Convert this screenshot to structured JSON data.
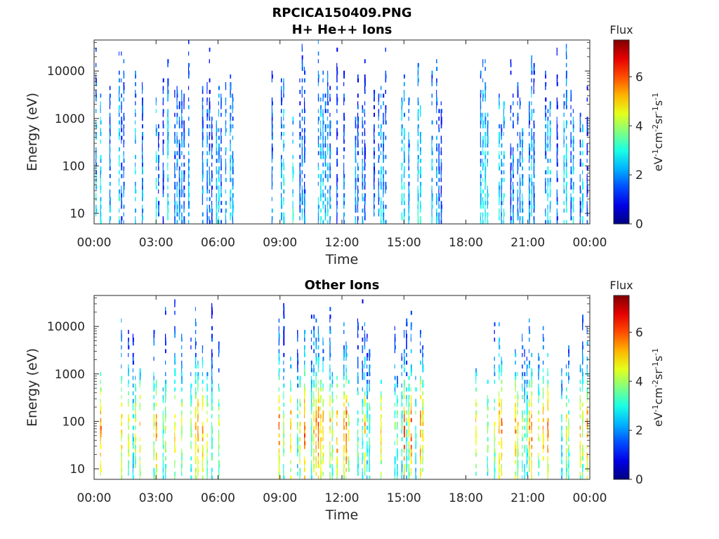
{
  "figure_title": "RPCICA150409.PNG",
  "chart_data": [
    {
      "type": "heatmap",
      "title": "H+ He++ Ions",
      "xlabel": "Time",
      "ylabel": "Energy (eV)",
      "x_ticks": [
        "00:00",
        "03:00",
        "06:00",
        "09:00",
        "12:00",
        "15:00",
        "18:00",
        "21:00",
        "00:00"
      ],
      "y_ticks": [
        "10",
        "100",
        "1000",
        "10000"
      ],
      "y_scale": "log",
      "ylim": [
        6,
        45000
      ],
      "x_range_hours": [
        0,
        24
      ],
      "colorbar": {
        "title": "Flux",
        "label": "eV-1cm-2sr-1s-1",
        "ticks": [
          "0",
          "2",
          "4",
          "6"
        ],
        "range": [
          0,
          7.5
        ],
        "colormap": "jet"
      },
      "data_gaps_hours": [
        [
          6.9,
          8.5
        ],
        [
          16.9,
          18.4
        ]
      ],
      "flux_profile": {
        "energy_eV": [
          10,
          30,
          100,
          300,
          1000,
          3000,
          10000
        ],
        "typical_flux": [
          2.6,
          2.4,
          2.3,
          2.2,
          2.1,
          1.8,
          1.6
        ]
      }
    },
    {
      "type": "heatmap",
      "title": "Other Ions",
      "xlabel": "Time",
      "ylabel": "Energy (eV)",
      "x_ticks": [
        "00:00",
        "03:00",
        "06:00",
        "09:00",
        "12:00",
        "15:00",
        "18:00",
        "21:00",
        "00:00"
      ],
      "y_ticks": [
        "10",
        "100",
        "1000",
        "10000"
      ],
      "y_scale": "log",
      "ylim": [
        6,
        45000
      ],
      "x_range_hours": [
        0,
        24
      ],
      "colorbar": {
        "title": "Flux",
        "label": "eV-1cm-2sr-1s-1",
        "ticks": [
          "0",
          "2",
          "4",
          "6"
        ],
        "range": [
          0,
          7.5
        ],
        "colormap": "jet"
      },
      "data_gaps_hours": [
        [
          6.9,
          8.5
        ],
        [
          16.9,
          18.4
        ]
      ],
      "flux_profile": {
        "energy_eV": [
          10,
          30,
          100,
          300,
          1000,
          3000,
          10000
        ],
        "typical_flux": [
          4.2,
          5.0,
          5.3,
          4.3,
          2.8,
          2.0,
          1.8
        ]
      }
    }
  ]
}
